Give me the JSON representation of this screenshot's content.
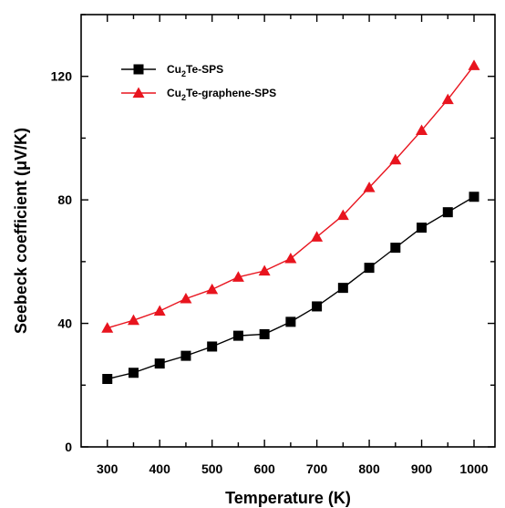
{
  "chart_data": {
    "type": "line",
    "xlabel": "Temperature (K)",
    "ylabel": "Seebeck coefficient (μV/K)",
    "xlim": [
      250,
      1040
    ],
    "ylim": [
      0,
      140
    ],
    "xticks": [
      300,
      400,
      500,
      600,
      700,
      800,
      900,
      1000
    ],
    "yticks": [
      0,
      40,
      80,
      120
    ],
    "grid": false,
    "legend_position": "top-left",
    "x": [
      300,
      350,
      400,
      450,
      500,
      550,
      600,
      650,
      700,
      750,
      800,
      850,
      900,
      950,
      1000
    ],
    "series": [
      {
        "name": "Cu2Te-SPS",
        "legend_base": "Cu",
        "legend_sub": "2",
        "legend_rest": "Te-SPS",
        "color": "#000000",
        "marker": "square",
        "values": [
          22,
          24,
          27,
          29.5,
          32.5,
          36,
          36.5,
          40.5,
          45.5,
          51.5,
          58,
          64.5,
          71,
          76,
          81
        ]
      },
      {
        "name": "Cu2Te-graphene-SPS",
        "legend_base": "Cu",
        "legend_sub": "2",
        "legend_rest": "Te-graphene-SPS",
        "color": "#e8141e",
        "marker": "triangle",
        "values": [
          38.5,
          41,
          44,
          48,
          51,
          55,
          57,
          61,
          68,
          75,
          84,
          93,
          102.5,
          112.5,
          123.5
        ]
      }
    ]
  }
}
